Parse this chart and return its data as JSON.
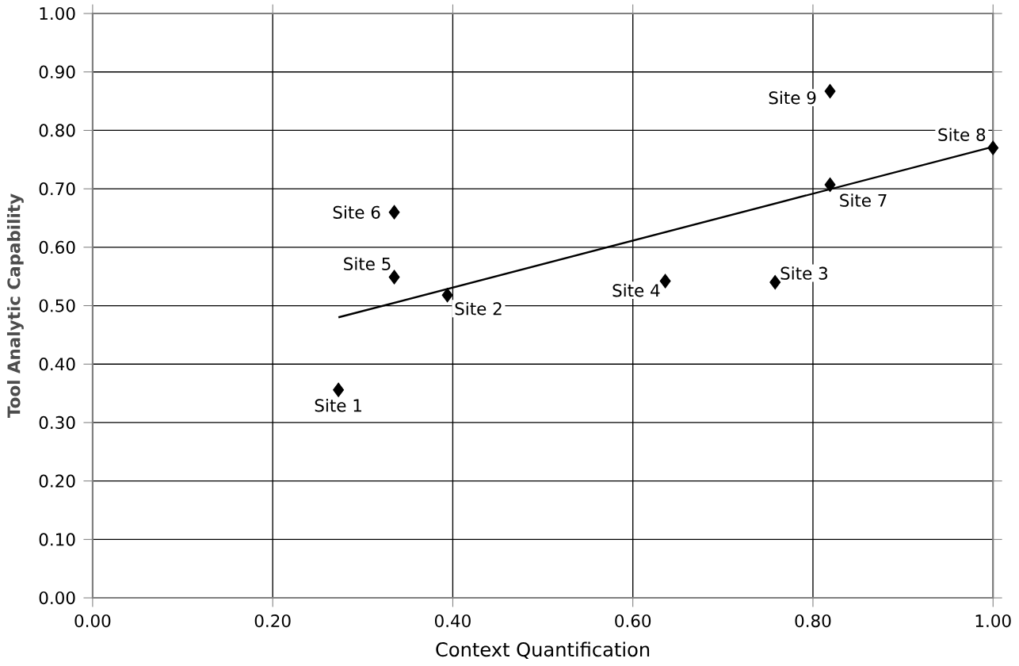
{
  "chart_data": {
    "type": "scatter",
    "xlabel": "Context Quantification",
    "ylabel": "Tool Analytic Capability",
    "marker": "diamond",
    "grid": true,
    "series": [
      {
        "color": "#000000",
        "x": [
          0.273,
          0.394,
          0.758,
          0.636,
          0.335,
          0.335,
          0.819,
          1.0,
          0.819
        ],
        "values": [
          0.356,
          0.518,
          0.54,
          0.542,
          0.549,
          0.66,
          0.707,
          0.77,
          0.867
        ]
      },
      {
        "type": "line",
        "color": "#000000",
        "marker": "none",
        "x": [
          0.273,
          1.0
        ],
        "values": [
          0.48,
          0.772
        ]
      }
    ],
    "annotations": [
      {
        "text": "Site 1",
        "x": 0.273,
        "y": 0.356
      },
      {
        "text": "Site 2",
        "x": 0.394,
        "y": 0.518
      },
      {
        "text": "Site 3",
        "x": 0.758,
        "y": 0.54
      },
      {
        "text": "Site 4",
        "x": 0.636,
        "y": 0.542
      },
      {
        "text": "Site 5",
        "x": 0.335,
        "y": 0.549
      },
      {
        "text": "Site 6",
        "x": 0.335,
        "y": 0.66
      },
      {
        "text": "Site 7",
        "x": 0.819,
        "y": 0.707
      },
      {
        "text": "Site 8",
        "x": 1.0,
        "y": 0.77
      },
      {
        "text": "Site 9",
        "x": 0.819,
        "y": 0.867
      }
    ],
    "xlim": [
      0,
      1
    ],
    "ylim": [
      0,
      1
    ],
    "xticks": [
      {
        "value": 0,
        "label": "0.00"
      },
      {
        "value": 0.2,
        "label": "0.20"
      },
      {
        "value": 0.4,
        "label": "0.40"
      },
      {
        "value": 0.6,
        "label": "0.60"
      },
      {
        "value": 0.8,
        "label": "0.80"
      },
      {
        "value": 1,
        "label": "1.00"
      }
    ],
    "yticks": [
      {
        "value": 0,
        "label": "0.00"
      },
      {
        "value": 0.1,
        "label": "0.10"
      },
      {
        "value": 0.2,
        "label": "0.20"
      },
      {
        "value": 0.3,
        "label": "0.30"
      },
      {
        "value": 0.4,
        "label": "0.40"
      },
      {
        "value": 0.5,
        "label": "0.50"
      },
      {
        "value": 0.6,
        "label": "0.60"
      },
      {
        "value": 0.7,
        "label": "0.70"
      },
      {
        "value": 0.8,
        "label": "0.80"
      },
      {
        "value": 0.9,
        "label": "0.90"
      },
      {
        "value": 1,
        "label": "1.00"
      }
    ]
  }
}
